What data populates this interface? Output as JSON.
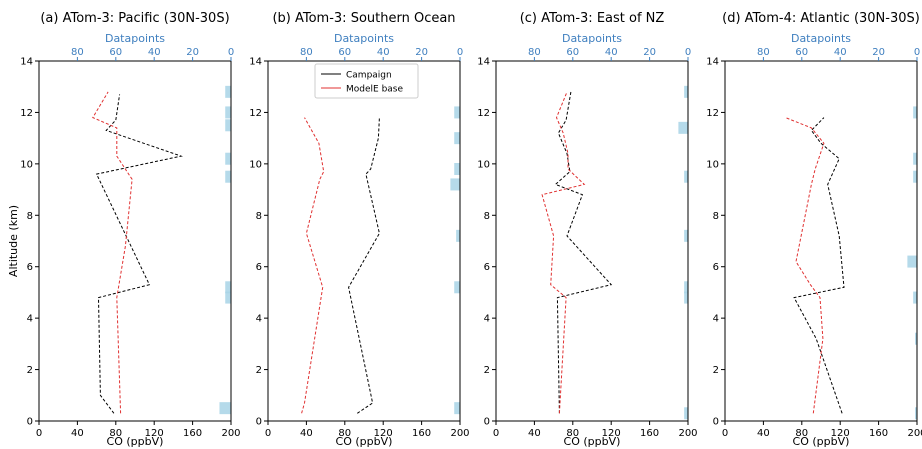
{
  "chart_data": [
    {
      "type": "line",
      "title": "(a) ATom-3: Pacific (30N-30S)",
      "xlabel": "CO (ppbV)",
      "ylabel": "Altitude (km)",
      "top_xlabel": "Datapoints",
      "xlim": [
        0,
        200
      ],
      "ylim": [
        0,
        14
      ],
      "top_xlim": [
        100,
        0
      ],
      "x_ticks": [
        "0",
        "40",
        "80",
        "120",
        "160",
        "200"
      ],
      "y_ticks": [
        "0",
        "2",
        "4",
        "6",
        "8",
        "10",
        "12",
        "14"
      ],
      "top_ticks": [
        "80",
        "60",
        "40",
        "20",
        "0"
      ],
      "series": [
        {
          "color": "#000000",
          "points": [
            [
              78,
              0.3
            ],
            [
              64,
              1.0
            ],
            [
              62,
              4.8
            ],
            [
              115,
              5.3
            ],
            [
              60,
              9.6
            ],
            [
              148,
              10.3
            ],
            [
              70,
              11.3
            ],
            [
              80,
              11.7
            ],
            [
              84,
              12.7
            ]
          ]
        },
        {
          "color": "#e03030",
          "points": [
            [
              85,
              0.3
            ],
            [
              81,
              4.8
            ],
            [
              90,
              6.8
            ],
            [
              97,
              9.4
            ],
            [
              81,
              10.3
            ],
            [
              81,
              11.4
            ],
            [
              56,
              11.8
            ],
            [
              72,
              12.8
            ]
          ]
        }
      ],
      "datapoints": [
        [
          0.5,
          6
        ],
        [
          4.8,
          3
        ],
        [
          5.2,
          3
        ],
        [
          9.5,
          3
        ],
        [
          10.2,
          3
        ],
        [
          11.5,
          3
        ],
        [
          12.0,
          3
        ],
        [
          12.8,
          3
        ]
      ]
    },
    {
      "type": "line",
      "title": "(b) ATom-3: Southern Ocean",
      "xlabel": "CO (ppbV)",
      "ylabel": "",
      "top_xlabel": "Datapoints",
      "xlim": [
        0,
        200
      ],
      "ylim": [
        0,
        14
      ],
      "top_xlim": [
        100,
        0
      ],
      "x_ticks": [
        "0",
        "40",
        "80",
        "120",
        "160",
        "200"
      ],
      "y_ticks": [
        "0",
        "2",
        "4",
        "6",
        "8",
        "10",
        "12",
        "14"
      ],
      "top_ticks": [
        "80",
        "60",
        "40",
        "20",
        "0"
      ],
      "legend": {
        "placement": "top-center",
        "entries": [
          {
            "label": "Campaign",
            "color": "#000000"
          },
          {
            "label": "ModelE base",
            "color": "#e03030"
          }
        ]
      },
      "series": [
        {
          "color": "#000000",
          "points": [
            [
              93,
              0.3
            ],
            [
              109,
              0.7
            ],
            [
              84,
              5.2
            ],
            [
              116,
              7.3
            ],
            [
              102,
              9.6
            ],
            [
              107,
              9.8
            ],
            [
              115,
              11.0
            ],
            [
              116,
              11.8
            ]
          ]
        },
        {
          "color": "#e03030",
          "points": [
            [
              35,
              0.3
            ],
            [
              38,
              0.7
            ],
            [
              57,
              5.2
            ],
            [
              40,
              7.3
            ],
            [
              54,
              9.4
            ],
            [
              58,
              9.7
            ],
            [
              53,
              10.8
            ],
            [
              38,
              11.8
            ]
          ]
        }
      ],
      "datapoints": [
        [
          0.5,
          3
        ],
        [
          5.2,
          3
        ],
        [
          7.2,
          2
        ],
        [
          9.2,
          5
        ],
        [
          9.8,
          3
        ],
        [
          11.0,
          3
        ],
        [
          12.0,
          3
        ]
      ]
    },
    {
      "type": "line",
      "title": "(c) ATom-3: East of NZ",
      "xlabel": "CO (ppbV)",
      "ylabel": "",
      "top_xlabel": "Datapoints",
      "xlim": [
        0,
        200
      ],
      "ylim": [
        0,
        14
      ],
      "top_xlim": [
        100,
        0
      ],
      "x_ticks": [
        "0",
        "40",
        "80",
        "120",
        "160",
        "200"
      ],
      "y_ticks": [
        "0",
        "2",
        "4",
        "6",
        "8",
        "10",
        "12",
        "14"
      ],
      "top_ticks": [
        "80",
        "60",
        "40",
        "20",
        "0"
      ],
      "series": [
        {
          "color": "#000000",
          "points": [
            [
              66,
              0.3
            ],
            [
              64,
              4.8
            ],
            [
              120,
              5.3
            ],
            [
              74,
              7.2
            ],
            [
              90,
              8.8
            ],
            [
              62,
              9.2
            ],
            [
              77,
              9.7
            ],
            [
              74,
              10.4
            ],
            [
              65,
              11.2
            ],
            [
              73,
              11.7
            ],
            [
              78,
              12.8
            ]
          ]
        },
        {
          "color": "#e03030",
          "points": [
            [
              66,
              0.3
            ],
            [
              73,
              4.8
            ],
            [
              57,
              5.3
            ],
            [
              60,
              7.2
            ],
            [
              48,
              8.8
            ],
            [
              92,
              9.2
            ],
            [
              75,
              9.8
            ],
            [
              75,
              10.4
            ],
            [
              70,
              11.2
            ],
            [
              63,
              11.8
            ],
            [
              74,
              12.8
            ]
          ]
        }
      ],
      "datapoints": [
        [
          0.3,
          2
        ],
        [
          4.8,
          2
        ],
        [
          5.2,
          2
        ],
        [
          7.2,
          2
        ],
        [
          9.5,
          2
        ],
        [
          11.4,
          5
        ],
        [
          12.8,
          2
        ]
      ]
    },
    {
      "type": "line",
      "title": "(d) ATom-4: Atlantic (30N-30S)",
      "xlabel": "CO (ppbV)",
      "ylabel": "",
      "top_xlabel": "Datapoints",
      "xlim": [
        0,
        200
      ],
      "ylim": [
        0,
        14
      ],
      "top_xlim": [
        100,
        0
      ],
      "x_ticks": [
        "0",
        "40",
        "80",
        "120",
        "160",
        "200"
      ],
      "y_ticks": [
        "0",
        "2",
        "4",
        "6",
        "8",
        "10",
        "12",
        "14"
      ],
      "top_ticks": [
        "80",
        "60",
        "40",
        "20",
        "0"
      ],
      "series": [
        {
          "color": "#000000",
          "points": [
            [
              122,
              0.3
            ],
            [
              95,
              3.2
            ],
            [
              72,
              4.8
            ],
            [
              124,
              5.2
            ],
            [
              119,
              7.2
            ],
            [
              107,
              9.2
            ],
            [
              119,
              10.2
            ],
            [
              100,
              10.8
            ],
            [
              90,
              11.3
            ],
            [
              103,
              11.8
            ]
          ]
        },
        {
          "color": "#e03030",
          "points": [
            [
              92,
              0.3
            ],
            [
              102,
              3.2
            ],
            [
              99,
              4.8
            ],
            [
              89,
              5.3
            ],
            [
              74,
              6.2
            ],
            [
              90,
              9.2
            ],
            [
              94,
              9.8
            ],
            [
              103,
              10.8
            ],
            [
              90,
              11.4
            ],
            [
              63,
              11.8
            ]
          ]
        }
      ],
      "datapoints": [
        [
          0.3,
          1
        ],
        [
          3.2,
          1
        ],
        [
          4.8,
          2
        ],
        [
          6.2,
          5
        ],
        [
          9.5,
          2
        ],
        [
          10.2,
          2
        ],
        [
          12.0,
          2
        ]
      ]
    }
  ]
}
